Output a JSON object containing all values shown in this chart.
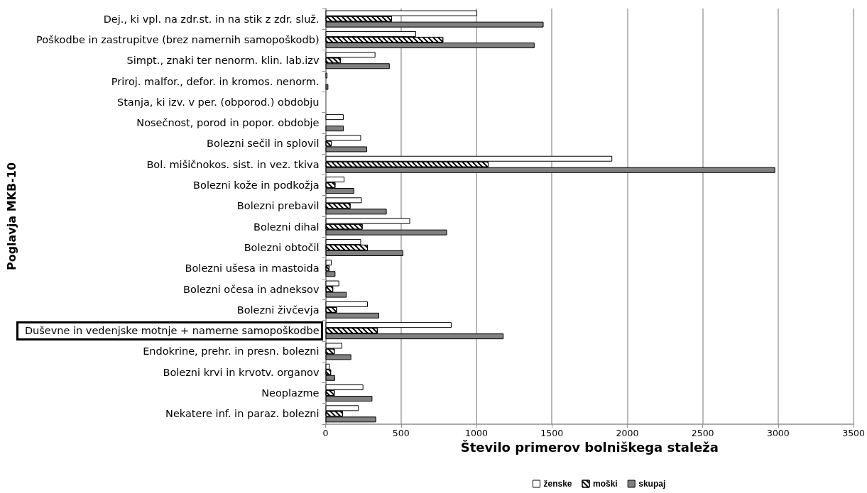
{
  "chart_data": {
    "type": "bar",
    "orientation": "horizontal",
    "xlabel": "Število primerov bolniškega staleža",
    "ylabel": "Poglavja MKB-10",
    "categories": [
      "Dej., ki vpl. na zdr.st. in na stik z zdr. služ.",
      "Poškodbe in zastrupitve (brez namernih samopoškodb)",
      "Simpt., znaki ter nenorm. klin. lab.izv",
      "Priroj. malfor., defor. in kromos. nenorm.",
      "Stanja, ki izv. v per. (obporod.) obdobju",
      "Nosečnost, porod in popor. obdobje",
      "Bolezni sečil in splovil",
      "Bol. mišičnokos. sist. in vez. tkiva",
      "Bolezni kože in podkožja",
      "Bolezni prebavil",
      "Bolezni dihal",
      "Bolezni obtočil",
      "Bolezni ušesa in mastoida",
      "Bolezni očesa in adneksov",
      "Bolezni živčevja",
      "Duševne in vedenjske motnje + namerne samopoškodbe",
      "Endokrine, prehr. in presn. bolezni",
      "Bolezni krvi in krvotv. organov",
      "Neoplazme",
      "Nekatere inf. in paraz. bolezni"
    ],
    "series": [
      {
        "name": "ženske",
        "color": "#ffffff",
        "values": [
          1005,
          600,
          330,
          12,
          0,
          120,
          235,
          1900,
          125,
          240,
          560,
          235,
          40,
          90,
          280,
          835,
          110,
          27,
          250,
          220
        ]
      },
      {
        "name": "moški",
        "color": "#ffffff",
        "values": [
          440,
          780,
          100,
          0,
          0,
          0,
          40,
          1080,
          65,
          165,
          245,
          280,
          25,
          50,
          75,
          345,
          60,
          36,
          60,
          115
        ]
      },
      {
        "name": "skupaj",
        "color": "#808080",
        "values": [
          1445,
          1385,
          425,
          18,
          0,
          120,
          275,
          2980,
          190,
          405,
          805,
          515,
          65,
          140,
          355,
          1180,
          170,
          63,
          310,
          335
        ]
      }
    ],
    "xlim": [
      0,
      3500
    ],
    "xticks": [
      0,
      500,
      1000,
      1500,
      2000,
      2500,
      3000,
      3500
    ],
    "grid": "x",
    "legend": "bottom"
  }
}
